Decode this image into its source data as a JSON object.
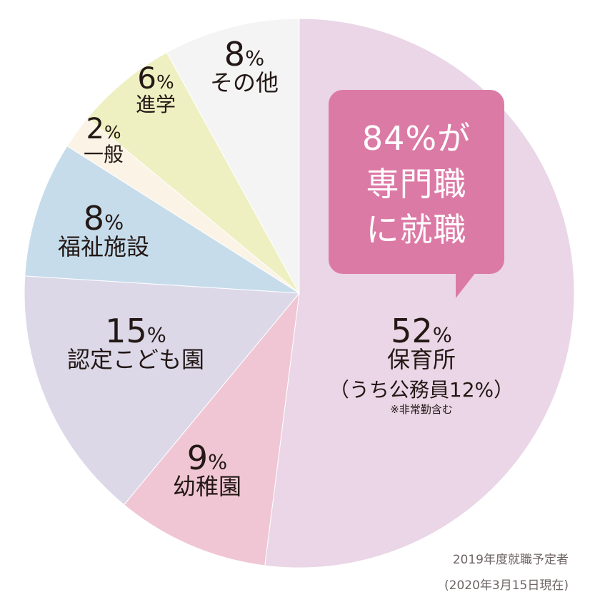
{
  "chart_data": {
    "type": "pie",
    "start_angle_deg": 0,
    "direction": "clockwise",
    "slices": [
      {
        "label": "保育所",
        "value": 52,
        "pct_text": "52",
        "sub_label": "（うち公務員12%）",
        "note": "※非常勤含む",
        "color": "#ead6e6"
      },
      {
        "label": "幼稚園",
        "value": 9,
        "pct_text": "9",
        "color": "#f0c6d4"
      },
      {
        "label": "認定こども園",
        "value": 15,
        "pct_text": "15",
        "color": "#dcd8e8"
      },
      {
        "label": "福祉施設",
        "value": 8,
        "pct_text": "8",
        "color": "#c6dceb"
      },
      {
        "label": "一般",
        "value": 2,
        "pct_text": "2",
        "color": "#fbf3e6"
      },
      {
        "label": "進学",
        "value": 6,
        "pct_text": "6",
        "color": "#eef0c2"
      },
      {
        "label": "その他",
        "value": 8,
        "pct_text": "8",
        "color": "#f4f4f4"
      }
    ],
    "percent_sign": "%"
  },
  "callout": {
    "line1": "84%が",
    "line2": "専門職",
    "line3": "に就職",
    "color": "#dc7aa6"
  },
  "footnote": {
    "line1": "2019年度就職予定者",
    "line2": "(2020年3月15日現在)"
  }
}
